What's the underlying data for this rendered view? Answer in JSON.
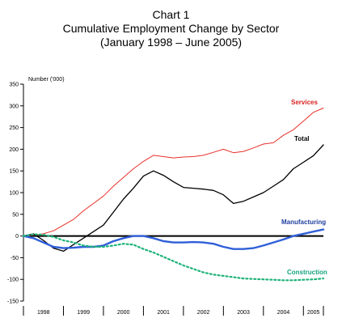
{
  "chart_data": {
    "type": "line",
    "title": "Chart 1",
    "subtitle": "Cumulative Employment Change by Sector",
    "period": "(January 1998 – June 2005)",
    "ylabel": "Number ('000)",
    "xlabel": "",
    "ylim": [
      -150,
      350
    ],
    "yticks": [
      -150,
      -100,
      -50,
      0,
      50,
      100,
      150,
      200,
      250,
      300,
      350
    ],
    "x_range": [
      1998.0,
      2005.5
    ],
    "categories": [
      "1998",
      "1999",
      "2000",
      "2001",
      "2002",
      "2003",
      "2004",
      "2005"
    ],
    "grid": false,
    "legend": "inline labels at line ends",
    "series": [
      {
        "name": "Services",
        "color": "#e8302a",
        "style": "solid",
        "label_color": "#d81f1f",
        "x": [
          1998.0,
          1998.25,
          1998.5,
          1998.75,
          1999.0,
          1999.25,
          1999.5,
          1999.75,
          2000.0,
          2000.25,
          2000.5,
          2000.75,
          2001.0,
          2001.25,
          2001.5,
          2001.75,
          2002.0,
          2002.25,
          2002.5,
          2002.75,
          2003.0,
          2003.25,
          2003.5,
          2003.75,
          2004.0,
          2004.25,
          2004.5,
          2004.75,
          2005.0,
          2005.25,
          2005.5
        ],
        "values": [
          0,
          2,
          5,
          12,
          25,
          38,
          58,
          75,
          92,
          115,
          135,
          155,
          172,
          186,
          183,
          180,
          182,
          183,
          186,
          193,
          200,
          192,
          195,
          203,
          212,
          215,
          232,
          245,
          265,
          285,
          295
        ]
      },
      {
        "name": "Total",
        "color": "#000000",
        "style": "solid",
        "label_color": "#000000",
        "x": [
          1998.0,
          1998.25,
          1998.5,
          1998.75,
          1999.0,
          1999.25,
          1999.5,
          1999.75,
          2000.0,
          2000.25,
          2000.5,
          2000.75,
          2001.0,
          2001.25,
          2001.5,
          2001.75,
          2002.0,
          2002.25,
          2002.5,
          2002.75,
          2003.0,
          2003.25,
          2003.5,
          2003.75,
          2004.0,
          2004.25,
          2004.5,
          2004.75,
          2005.0,
          2005.25,
          2005.5
        ],
        "values": [
          0,
          5,
          -10,
          -28,
          -35,
          -20,
          -5,
          10,
          25,
          55,
          85,
          110,
          138,
          150,
          140,
          125,
          112,
          110,
          108,
          105,
          95,
          75,
          80,
          90,
          100,
          115,
          130,
          155,
          170,
          185,
          210
        ]
      },
      {
        "name": "Manufacturing",
        "color": "#2f5fd8",
        "style": "solid",
        "label_color": "#1f3f9f",
        "x": [
          1998.0,
          1998.25,
          1998.5,
          1998.75,
          1999.0,
          1999.25,
          1999.5,
          1999.75,
          2000.0,
          2000.25,
          2000.5,
          2000.75,
          2001.0,
          2001.25,
          2001.5,
          2001.75,
          2002.0,
          2002.25,
          2002.5,
          2002.75,
          2003.0,
          2003.25,
          2003.5,
          2003.75,
          2004.0,
          2004.25,
          2004.5,
          2004.75,
          2005.0,
          2005.25,
          2005.5
        ],
        "values": [
          0,
          -5,
          -15,
          -25,
          -28,
          -27,
          -25,
          -25,
          -22,
          -12,
          -5,
          0,
          0,
          -5,
          -12,
          -15,
          -15,
          -14,
          -15,
          -18,
          -25,
          -30,
          -30,
          -28,
          -22,
          -15,
          -8,
          0,
          5,
          10,
          15
        ]
      },
      {
        "name": "Construction",
        "color": "#1fb37a",
        "style": "dotted",
        "label_color": "#16a37e",
        "x": [
          1998.0,
          1998.25,
          1998.5,
          1998.75,
          1999.0,
          1999.25,
          1999.5,
          1999.75,
          2000.0,
          2000.25,
          2000.5,
          2000.75,
          2001.0,
          2001.25,
          2001.5,
          2001.75,
          2002.0,
          2002.25,
          2002.5,
          2002.75,
          2003.0,
          2003.25,
          2003.5,
          2003.75,
          2004.0,
          2004.25,
          2004.5,
          2004.75,
          2005.0,
          2005.25,
          2005.5
        ],
        "values": [
          0,
          4,
          3,
          -2,
          -10,
          -15,
          -22,
          -25,
          -25,
          -22,
          -18,
          -20,
          -30,
          -38,
          -48,
          -58,
          -68,
          -76,
          -84,
          -89,
          -92,
          -95,
          -98,
          -99,
          -100,
          -101,
          -102,
          -102,
          -101,
          -100,
          -98
        ]
      }
    ]
  }
}
